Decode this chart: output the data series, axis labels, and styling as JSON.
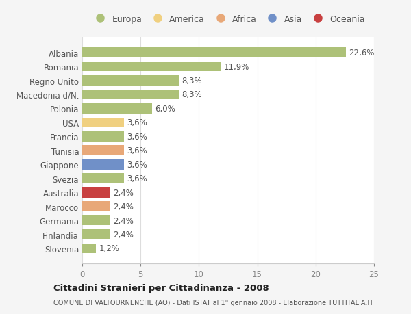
{
  "countries": [
    "Albania",
    "Romania",
    "Regno Unito",
    "Macedonia d/N.",
    "Polonia",
    "USA",
    "Francia",
    "Tunisia",
    "Giappone",
    "Svezia",
    "Australia",
    "Marocco",
    "Germania",
    "Finlandia",
    "Slovenia"
  ],
  "values": [
    22.6,
    11.9,
    8.3,
    8.3,
    6.0,
    3.6,
    3.6,
    3.6,
    3.6,
    3.6,
    2.4,
    2.4,
    2.4,
    2.4,
    1.2
  ],
  "labels": [
    "22,6%",
    "11,9%",
    "8,3%",
    "8,3%",
    "6,0%",
    "3,6%",
    "3,6%",
    "3,6%",
    "3,6%",
    "3,6%",
    "2,4%",
    "2,4%",
    "2,4%",
    "2,4%",
    "1,2%"
  ],
  "colors": [
    "#adc178",
    "#adc178",
    "#adc178",
    "#adc178",
    "#adc178",
    "#f0d080",
    "#adc178",
    "#e8a878",
    "#7090c8",
    "#adc178",
    "#c84040",
    "#e8a878",
    "#adc178",
    "#adc178",
    "#adc178"
  ],
  "legend_labels": [
    "Europa",
    "America",
    "Africa",
    "Asia",
    "Oceania"
  ],
  "legend_colors": [
    "#adc178",
    "#f0d080",
    "#e8a878",
    "#7090c8",
    "#c84040"
  ],
  "title": "Cittadini Stranieri per Cittadinanza - 2008",
  "subtitle": "COMUNE DI VALTOURNENCHE (AO) - Dati ISTAT al 1° gennaio 2008 - Elaborazione TUTTITALIA.IT",
  "xlim": [
    0,
    25
  ],
  "xticks": [
    0,
    5,
    10,
    15,
    20,
    25
  ],
  "background_color": "#f5f5f5",
  "plot_bg_color": "#ffffff",
  "grid_color": "#dddddd",
  "bar_height": 0.72,
  "label_fontsize": 8.5,
  "ytick_fontsize": 8.5,
  "xtick_fontsize": 8.5
}
